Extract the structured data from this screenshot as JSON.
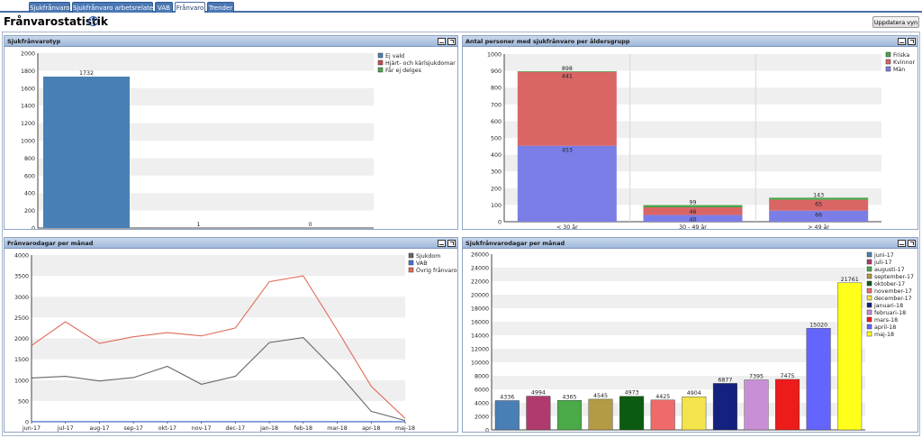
{
  "tabs": [
    {
      "label": "Sjukfrånvaro",
      "active": false
    },
    {
      "label": "Sjukfrånvaro arbetsrelaterat",
      "active": false
    },
    {
      "label": "VAB",
      "active": false
    },
    {
      "label": "Frånvaro",
      "active": true
    },
    {
      "label": "Trender",
      "active": false
    }
  ],
  "page": {
    "title": "Frånvarostatistik",
    "help_icon": "?",
    "update_button": "Uppdatera vyn"
  },
  "panels": {
    "p1": {
      "title": "Sjukfrånvarotyp"
    },
    "p2": {
      "title": "Antal personer med sjukfrånvaro per åldersgrupp"
    },
    "p3": {
      "title": "Frånvarodagar per månad"
    },
    "p4": {
      "title": "Sjukfrånvarodagar per månad"
    }
  },
  "chart_data": [
    {
      "type": "bar",
      "title": "Sjukfrånvarotyp",
      "series": [
        {
          "name": "Ej vald",
          "value": 1732,
          "color": "#4a7fb5"
        },
        {
          "name": "Hjärt- och kärlsjukdomar",
          "value": 1,
          "color": "#c0504d"
        },
        {
          "name": "Får ej delges",
          "value": 0,
          "color": "#4ea84a"
        }
      ],
      "data_labels": [
        "1732",
        "1",
        "0"
      ],
      "ylim": [
        0,
        2000
      ],
      "yticks": [
        "0",
        "200",
        "400",
        "600",
        "800",
        "1000",
        "1200",
        "1400",
        "1600",
        "1800",
        "2000"
      ],
      "grid": "alternating bands",
      "legend": "top-right"
    },
    {
      "type": "bar",
      "stacked": true,
      "title": "Antal personer med sjukfrånvaro per åldersgrupp",
      "categories": [
        "< 30 år",
        "30 - 49 år",
        "> 49 år"
      ],
      "series": [
        {
          "name": "Män",
          "values": [
            453,
            40,
            66
          ],
          "color": "#7b7ee6"
        },
        {
          "name": "Kvinnor",
          "values": [
            441,
            46,
            65
          ],
          "color": "#d96565"
        },
        {
          "name": "Friska",
          "values": [
            4,
            13,
            12
          ],
          "color": "#4aa54a"
        }
      ],
      "data_labels": [
        [
          "453",
          "441",
          "898"
        ],
        [
          "40",
          "46",
          "99"
        ],
        [
          "66",
          "65",
          "143"
        ]
      ],
      "ylim": [
        0,
        1000
      ],
      "yticks": [
        "0",
        "100",
        "200",
        "300",
        "400",
        "500",
        "600",
        "700",
        "800",
        "900",
        "1000"
      ],
      "grid": "alternating bands",
      "legend": "top-right"
    },
    {
      "type": "line",
      "title": "Frånvarodagar per månad",
      "x": [
        "jun-17",
        "jul-17",
        "aug-17",
        "sep-17",
        "okt-17",
        "nov-17",
        "dec-17",
        "jan-18",
        "feb-18",
        "mar-18",
        "apr-18",
        "maj-18"
      ],
      "series": [
        {
          "name": "Sjukdom",
          "values": [
            1050,
            1090,
            980,
            1060,
            1330,
            900,
            1090,
            1900,
            2020,
            1190,
            250,
            30
          ],
          "color": "#666666"
        },
        {
          "name": "VAB",
          "values": [
            5,
            5,
            5,
            5,
            5,
            5,
            5,
            5,
            5,
            5,
            5,
            5
          ],
          "color": "#4a6fd8"
        },
        {
          "name": "Övrig frånvaro",
          "values": [
            1830,
            2400,
            1880,
            2040,
            2140,
            2060,
            2250,
            3360,
            3500,
            2200,
            850,
            80
          ],
          "color": "#e06a5a"
        }
      ],
      "ylim": [
        0,
        4000
      ],
      "yticks": [
        "0",
        "500",
        "1000",
        "1500",
        "2000",
        "2500",
        "3000",
        "3500",
        "4000"
      ],
      "grid": "alternating bands",
      "legend": "top-right"
    },
    {
      "type": "bar",
      "title": "Sjukfrånvarodagar per månad",
      "series": [
        {
          "name": "juni-17",
          "value": 4336,
          "color": "#4a7fb5"
        },
        {
          "name": "juli-17",
          "value": 4994,
          "color": "#b03a6b"
        },
        {
          "name": "augusti-17",
          "value": 4365,
          "color": "#4aaa48"
        },
        {
          "name": "september-17",
          "value": 4545,
          "color": "#b39a45"
        },
        {
          "name": "oktober-17",
          "value": 4973,
          "color": "#0b5c10"
        },
        {
          "name": "november-17",
          "value": 4425,
          "color": "#ef6a6a"
        },
        {
          "name": "december-17",
          "value": 4904,
          "color": "#f2e44a"
        },
        {
          "name": "januari-18",
          "value": 6877,
          "color": "#15217e"
        },
        {
          "name": "februari-18",
          "value": 7395,
          "color": "#c98fd6"
        },
        {
          "name": "mars-18",
          "value": 7475,
          "color": "#ee1b1b"
        },
        {
          "name": "april-18",
          "value": 15020,
          "color": "#6464ff"
        },
        {
          "name": "maj-18",
          "value": 21761,
          "color": "#ffff1a"
        }
      ],
      "data_labels": [
        "4336",
        "4994",
        "4365",
        "4545",
        "4973",
        "4425",
        "4904",
        "6877",
        "7395",
        "7475",
        "15020",
        "21761"
      ],
      "ylim": [
        0,
        26000
      ],
      "yticks": [
        "0",
        "2000",
        "4000",
        "6000",
        "8000",
        "10000",
        "12000",
        "14000",
        "16000",
        "18000",
        "20000",
        "22000",
        "24000",
        "26000"
      ],
      "grid": "alternating bands",
      "legend": "top-right"
    }
  ]
}
